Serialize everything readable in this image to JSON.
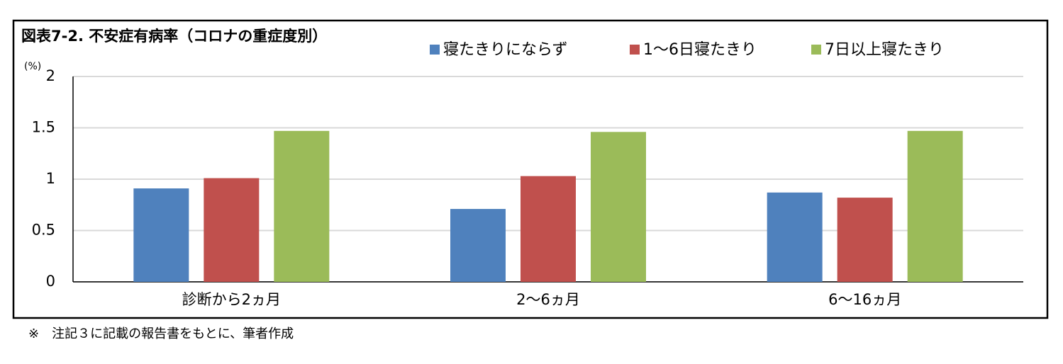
{
  "chart_data": {
    "type": "bar",
    "title": "図表7-2. 不安症有病率（コロナの重症度別）",
    "y_label": "(%)",
    "categories": [
      "診断から2ヵ月",
      "2〜6ヵ月",
      "6〜16ヵ月"
    ],
    "series": [
      {
        "name": "寝たきりにならず",
        "color": "#4f81bd",
        "values": [
          0.91,
          0.71,
          0.87
        ]
      },
      {
        "name": "1〜6日寝たきり",
        "color": "#c0504d",
        "values": [
          1.01,
          1.03,
          0.82
        ]
      },
      {
        "name": "7日以上寝たきり",
        "color": "#9bbb59",
        "values": [
          1.47,
          1.46,
          1.47
        ]
      }
    ],
    "ylim": [
      0,
      2
    ],
    "yticks": [
      0,
      0.5,
      1,
      1.5,
      2
    ],
    "grid": true,
    "legend": "top",
    "note": "※　注記３に記載の報告書をもとに、筆者作成"
  }
}
